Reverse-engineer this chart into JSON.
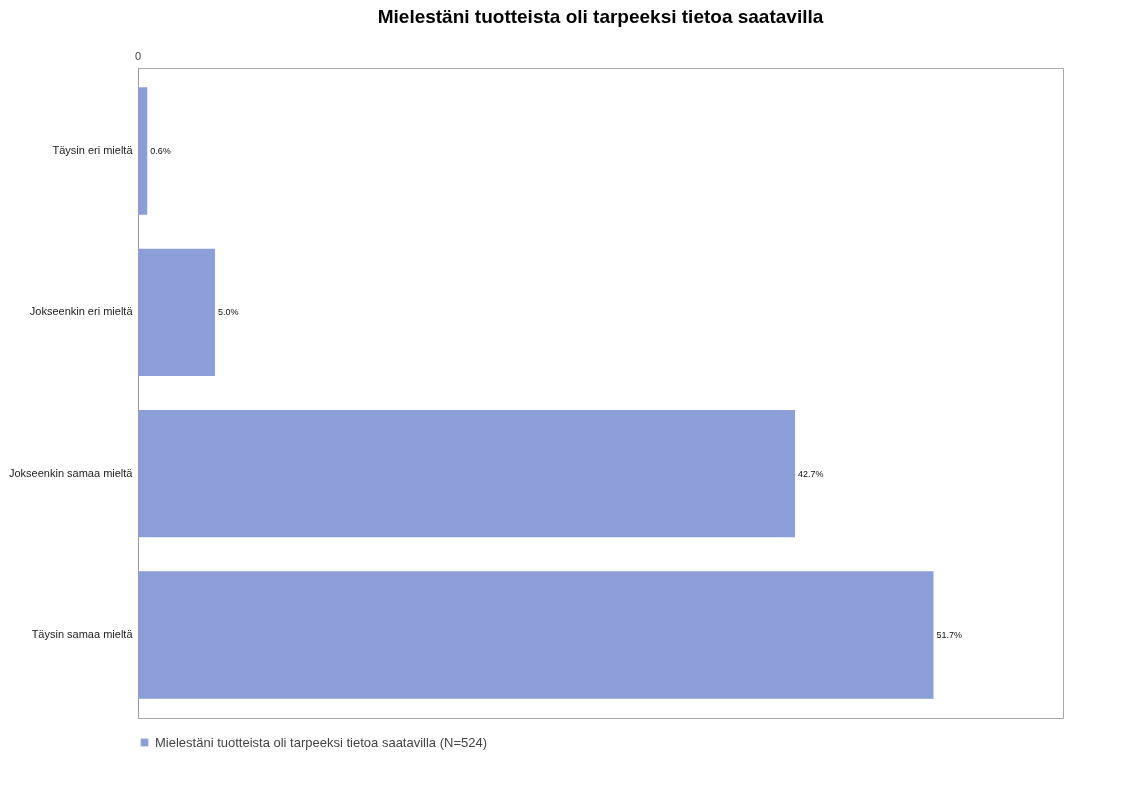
{
  "chart_data": {
    "type": "bar",
    "orientation": "horizontal",
    "title": "Mielestäni tuotteista oli tarpeeksi tietoa saatavilla",
    "categories": [
      "Täysin eri mieltä",
      "Jokseenkin eri mieltä",
      "Jokseenkin samaa mieltä",
      "Täysin samaa mieltä"
    ],
    "series": [
      {
        "name": "Mielestäni tuotteista oli tarpeeksi tietoa saatavilla (N=524)",
        "color": "#8c9ed8",
        "values": [
          0.6,
          5.0,
          42.7,
          51.7
        ],
        "value_labels": [
          "0.6%",
          "5.0%",
          "42.7%",
          "51.7%"
        ]
      }
    ],
    "annotations": [
      "0"
    ],
    "legend": "bottom"
  }
}
